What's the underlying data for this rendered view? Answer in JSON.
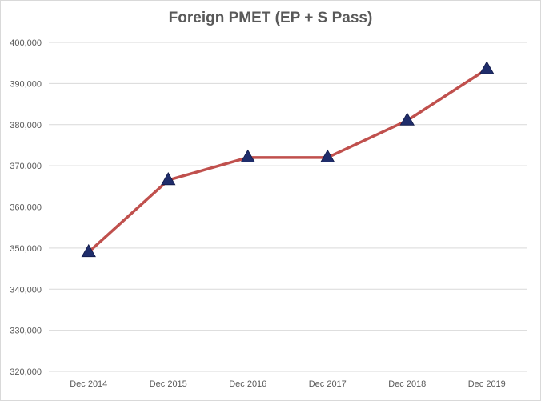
{
  "chart_data": {
    "type": "line",
    "title": "Foreign PMET (EP + S Pass)",
    "categories": [
      "Dec 2014",
      "Dec 2015",
      "Dec 2016",
      "Dec 2017",
      "Dec 2018",
      "Dec 2019"
    ],
    "series": [
      {
        "values": [
          349000,
          366500,
          372000,
          372000,
          381000,
          393500
        ]
      }
    ],
    "ylim": [
      320000,
      400000
    ],
    "ytick_step": 10000,
    "ytick_labels": [
      "320,000",
      "330,000",
      "340,000",
      "350,000",
      "360,000",
      "370,000",
      "380,000",
      "390,000",
      "400,000"
    ],
    "xlabel": "",
    "ylabel": "",
    "grid": "horizontal",
    "legend": "none",
    "line_color": "#c0504d",
    "marker": "triangle",
    "marker_color": "#1f2d6b"
  }
}
